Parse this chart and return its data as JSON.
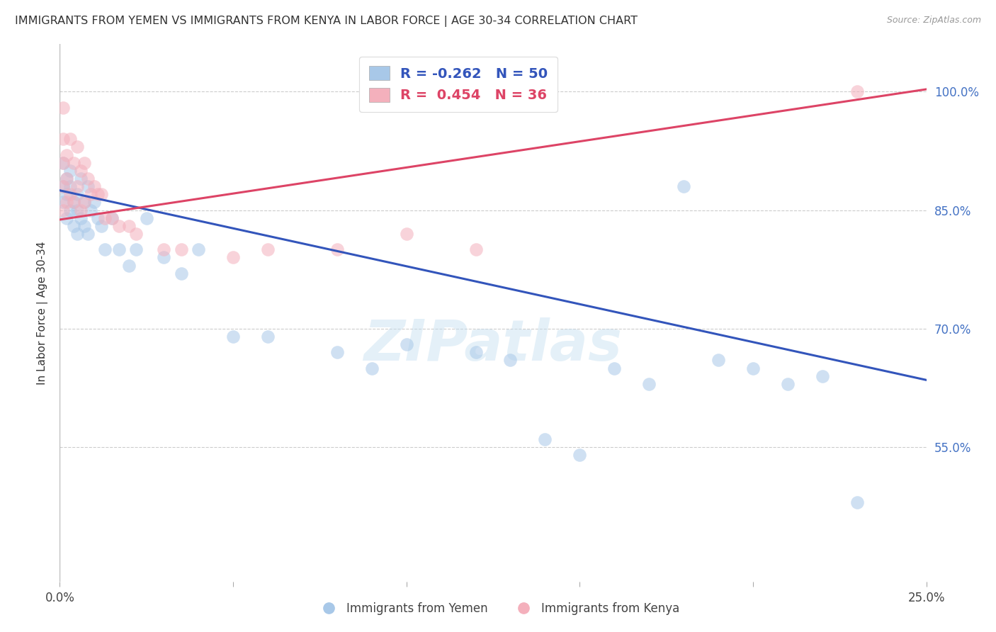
{
  "title": "IMMIGRANTS FROM YEMEN VS IMMIGRANTS FROM KENYA IN LABOR FORCE | AGE 30-34 CORRELATION CHART",
  "source": "Source: ZipAtlas.com",
  "ylabel": "In Labor Force | Age 30-34",
  "xlim": [
    0.0,
    0.25
  ],
  "ylim": [
    0.38,
    1.06
  ],
  "yticks": [
    0.55,
    0.7,
    0.85,
    1.0
  ],
  "ytick_labels": [
    "55.0%",
    "70.0%",
    "85.0%",
    "100.0%"
  ],
  "xticks": [
    0.0,
    0.05,
    0.1,
    0.15,
    0.2,
    0.25
  ],
  "xtick_labels": [
    "0.0%",
    "",
    "",
    "",
    "",
    "25.0%"
  ],
  "legend_blue_r": "-0.262",
  "legend_blue_n": "50",
  "legend_pink_r": "0.454",
  "legend_pink_n": "36",
  "blue_scatter_x": [
    0.001,
    0.001,
    0.001,
    0.002,
    0.002,
    0.002,
    0.003,
    0.003,
    0.003,
    0.004,
    0.004,
    0.005,
    0.005,
    0.005,
    0.006,
    0.006,
    0.007,
    0.007,
    0.008,
    0.008,
    0.009,
    0.01,
    0.011,
    0.012,
    0.013,
    0.015,
    0.017,
    0.02,
    0.022,
    0.025,
    0.03,
    0.035,
    0.04,
    0.05,
    0.06,
    0.08,
    0.09,
    0.1,
    0.12,
    0.13,
    0.14,
    0.15,
    0.16,
    0.17,
    0.18,
    0.19,
    0.2,
    0.21,
    0.22,
    0.23
  ],
  "blue_scatter_y": [
    0.91,
    0.88,
    0.86,
    0.89,
    0.87,
    0.84,
    0.9,
    0.88,
    0.85,
    0.86,
    0.83,
    0.87,
    0.85,
    0.82,
    0.89,
    0.84,
    0.86,
    0.83,
    0.88,
    0.82,
    0.85,
    0.86,
    0.84,
    0.83,
    0.8,
    0.84,
    0.8,
    0.78,
    0.8,
    0.84,
    0.79,
    0.77,
    0.8,
    0.69,
    0.69,
    0.67,
    0.65,
    0.68,
    0.67,
    0.66,
    0.56,
    0.54,
    0.65,
    0.63,
    0.88,
    0.66,
    0.65,
    0.63,
    0.64,
    0.48
  ],
  "pink_scatter_x": [
    0.001,
    0.001,
    0.001,
    0.001,
    0.001,
    0.002,
    0.002,
    0.002,
    0.003,
    0.003,
    0.004,
    0.004,
    0.005,
    0.005,
    0.006,
    0.006,
    0.007,
    0.007,
    0.008,
    0.009,
    0.01,
    0.011,
    0.012,
    0.013,
    0.015,
    0.017,
    0.02,
    0.022,
    0.03,
    0.035,
    0.05,
    0.06,
    0.08,
    0.1,
    0.12,
    0.23
  ],
  "pink_scatter_y": [
    0.98,
    0.94,
    0.91,
    0.88,
    0.85,
    0.92,
    0.89,
    0.86,
    0.94,
    0.87,
    0.91,
    0.86,
    0.93,
    0.88,
    0.9,
    0.85,
    0.91,
    0.86,
    0.89,
    0.87,
    0.88,
    0.87,
    0.87,
    0.84,
    0.84,
    0.83,
    0.83,
    0.82,
    0.8,
    0.8,
    0.79,
    0.8,
    0.8,
    0.82,
    0.8,
    1.0
  ],
  "blue_line_x": [
    0.0,
    0.25
  ],
  "blue_line_y": [
    0.875,
    0.635
  ],
  "pink_line_x": [
    0.0,
    0.25
  ],
  "pink_line_y": [
    0.838,
    1.003
  ],
  "blue_color": "#a8c8e8",
  "pink_color": "#f4b0bc",
  "blue_line_color": "#3355bb",
  "pink_line_color": "#dd4466",
  "watermark_text": "ZIPatlas",
  "background_color": "#ffffff",
  "grid_color": "#cccccc"
}
